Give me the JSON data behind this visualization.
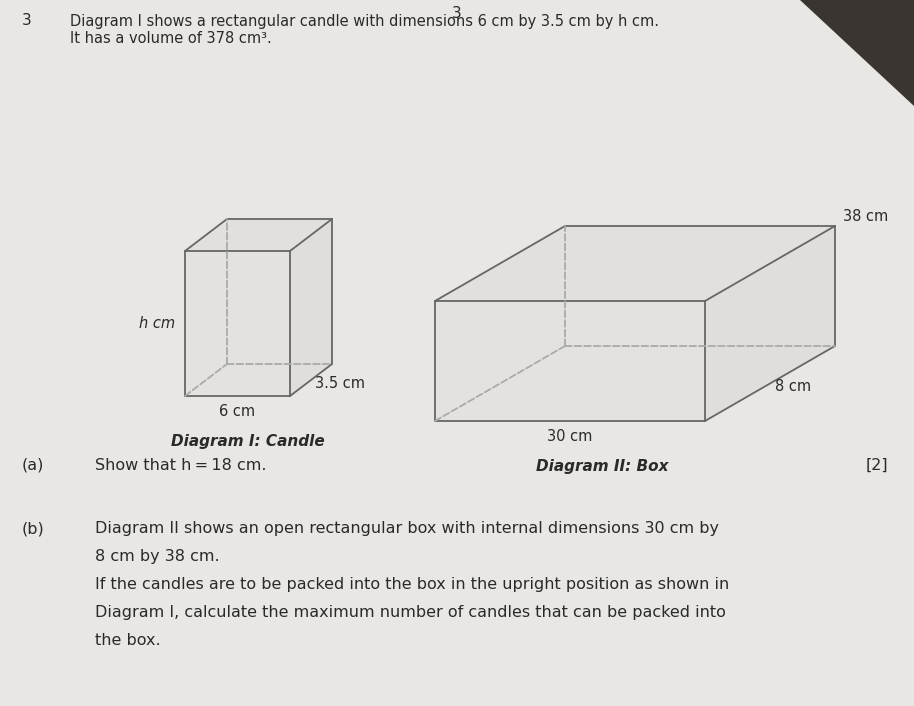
{
  "page_color": "#e8e7e3",
  "question_number": "3",
  "page_number": "3",
  "title_line1": "Diagram I shows a rectangular candle with dimensions 6 cm by 3.5 cm by h cm.",
  "title_line2": "It has a volume of 378 cm³.",
  "diagram1_label": "Diagram I: Candle",
  "diagram2_label": "Diagram II: Box",
  "candle_labels": {
    "front_bottom": "6 cm",
    "side_bottom": "3.5 cm",
    "left_height": "h cm"
  },
  "box_labels": {
    "front_bottom": "30 cm",
    "right_side": "8 cm",
    "top_right": "38 cm"
  },
  "part_a_label": "(a)",
  "part_a_text": "Show that h = 18 cm.",
  "part_a_marks": "[2]",
  "part_b_label": "(b)",
  "part_b_lines": [
    "Diagram II shows an open rectangular box with internal dimensions 30 cm by",
    "8 cm by 38 cm.",
    "If the candles are to be packed into the box in the upright position as shown in",
    "Diagram I, calculate the maximum number of candles that can be packed into",
    "the box."
  ],
  "text_color": "#2a2a2a",
  "line_color": "#666666",
  "dashed_color": "#aaaaaa",
  "dark_corner_color": "#3a3530"
}
